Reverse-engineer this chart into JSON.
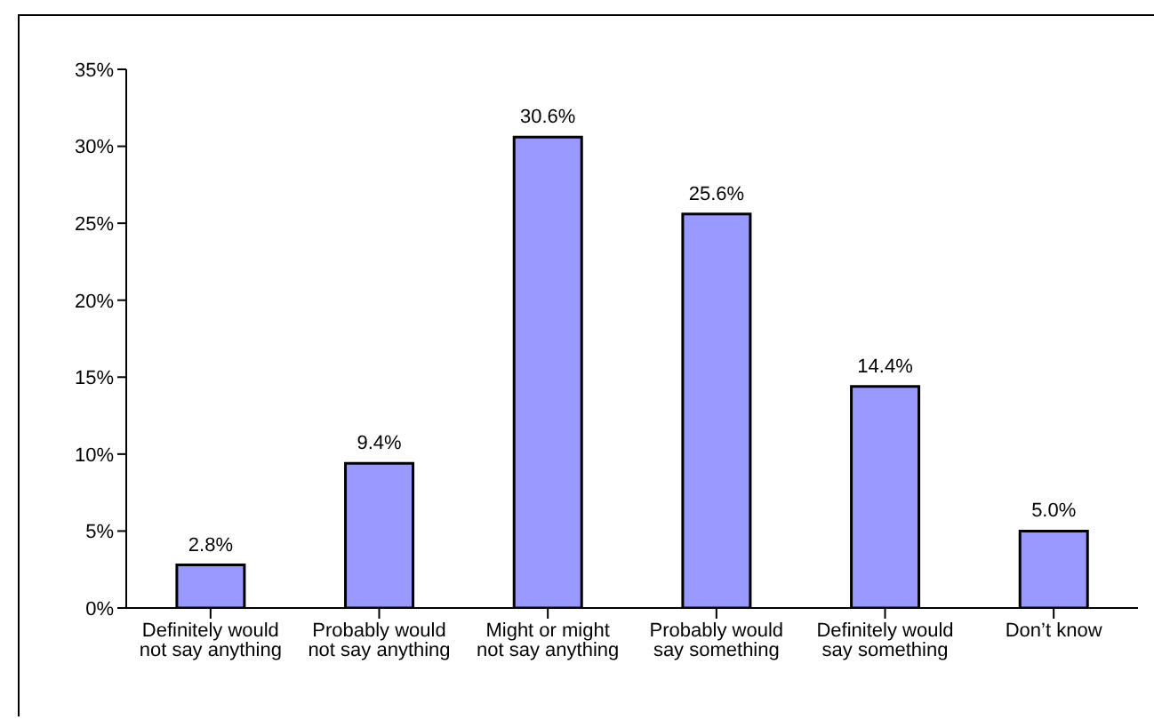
{
  "chart_data": {
    "type": "bar",
    "categories": [
      "Definitely would not say anything",
      "Probably would not say anything",
      "Might or might not say anything",
      "Probably would say something",
      "Definitely would say something",
      "Don’t know"
    ],
    "series": [
      {
        "color": "#9999ff",
        "values": [
          2.8,
          9.4,
          30.6,
          25.6,
          14.4,
          5.0
        ],
        "value_labels": [
          "2.8%",
          "9.4%",
          "30.6%",
          "25.6%",
          "14.4%",
          "5.0%"
        ]
      }
    ],
    "ylim": [
      0,
      35
    ],
    "yticks": [
      {
        "value": 0,
        "label": "0%"
      },
      {
        "value": 5,
        "label": "5%"
      },
      {
        "value": 10,
        "label": "10%"
      },
      {
        "value": 15,
        "label": "15%"
      },
      {
        "value": 20,
        "label": "20%"
      },
      {
        "value": 25,
        "label": "25%"
      },
      {
        "value": 30,
        "label": "30%"
      },
      {
        "value": 35,
        "label": "35%"
      }
    ],
    "grid": false,
    "legend": false
  }
}
